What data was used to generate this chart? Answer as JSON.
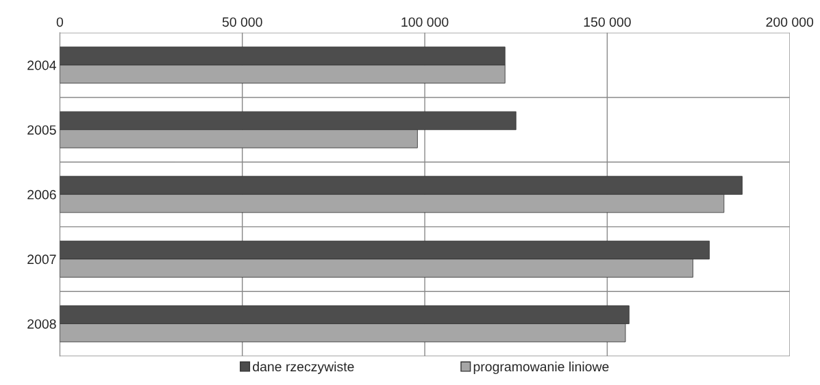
{
  "chart_data": {
    "type": "bar",
    "orientation": "horizontal",
    "categories": [
      "2004",
      "2005",
      "2006",
      "2007",
      "2008"
    ],
    "series": [
      {
        "name": "dane rzeczywiste",
        "color": "#4d4d4d",
        "values": [
          122000,
          125000,
          187000,
          178000,
          156000
        ]
      },
      {
        "name": "programowanie liniowe",
        "color": "#a6a6a6",
        "values": [
          122000,
          98000,
          182000,
          173500,
          155000
        ]
      }
    ],
    "xlim": [
      0,
      200000
    ],
    "xticks": [
      0,
      {
        "value": 50000,
        "label": "50 000"
      },
      {
        "value": 100000,
        "label": "100 000"
      },
      {
        "value": 150000,
        "label": "150 000"
      },
      {
        "value": 200000,
        "label": "200 000"
      }
    ],
    "grid": true,
    "legend": "bottom"
  }
}
